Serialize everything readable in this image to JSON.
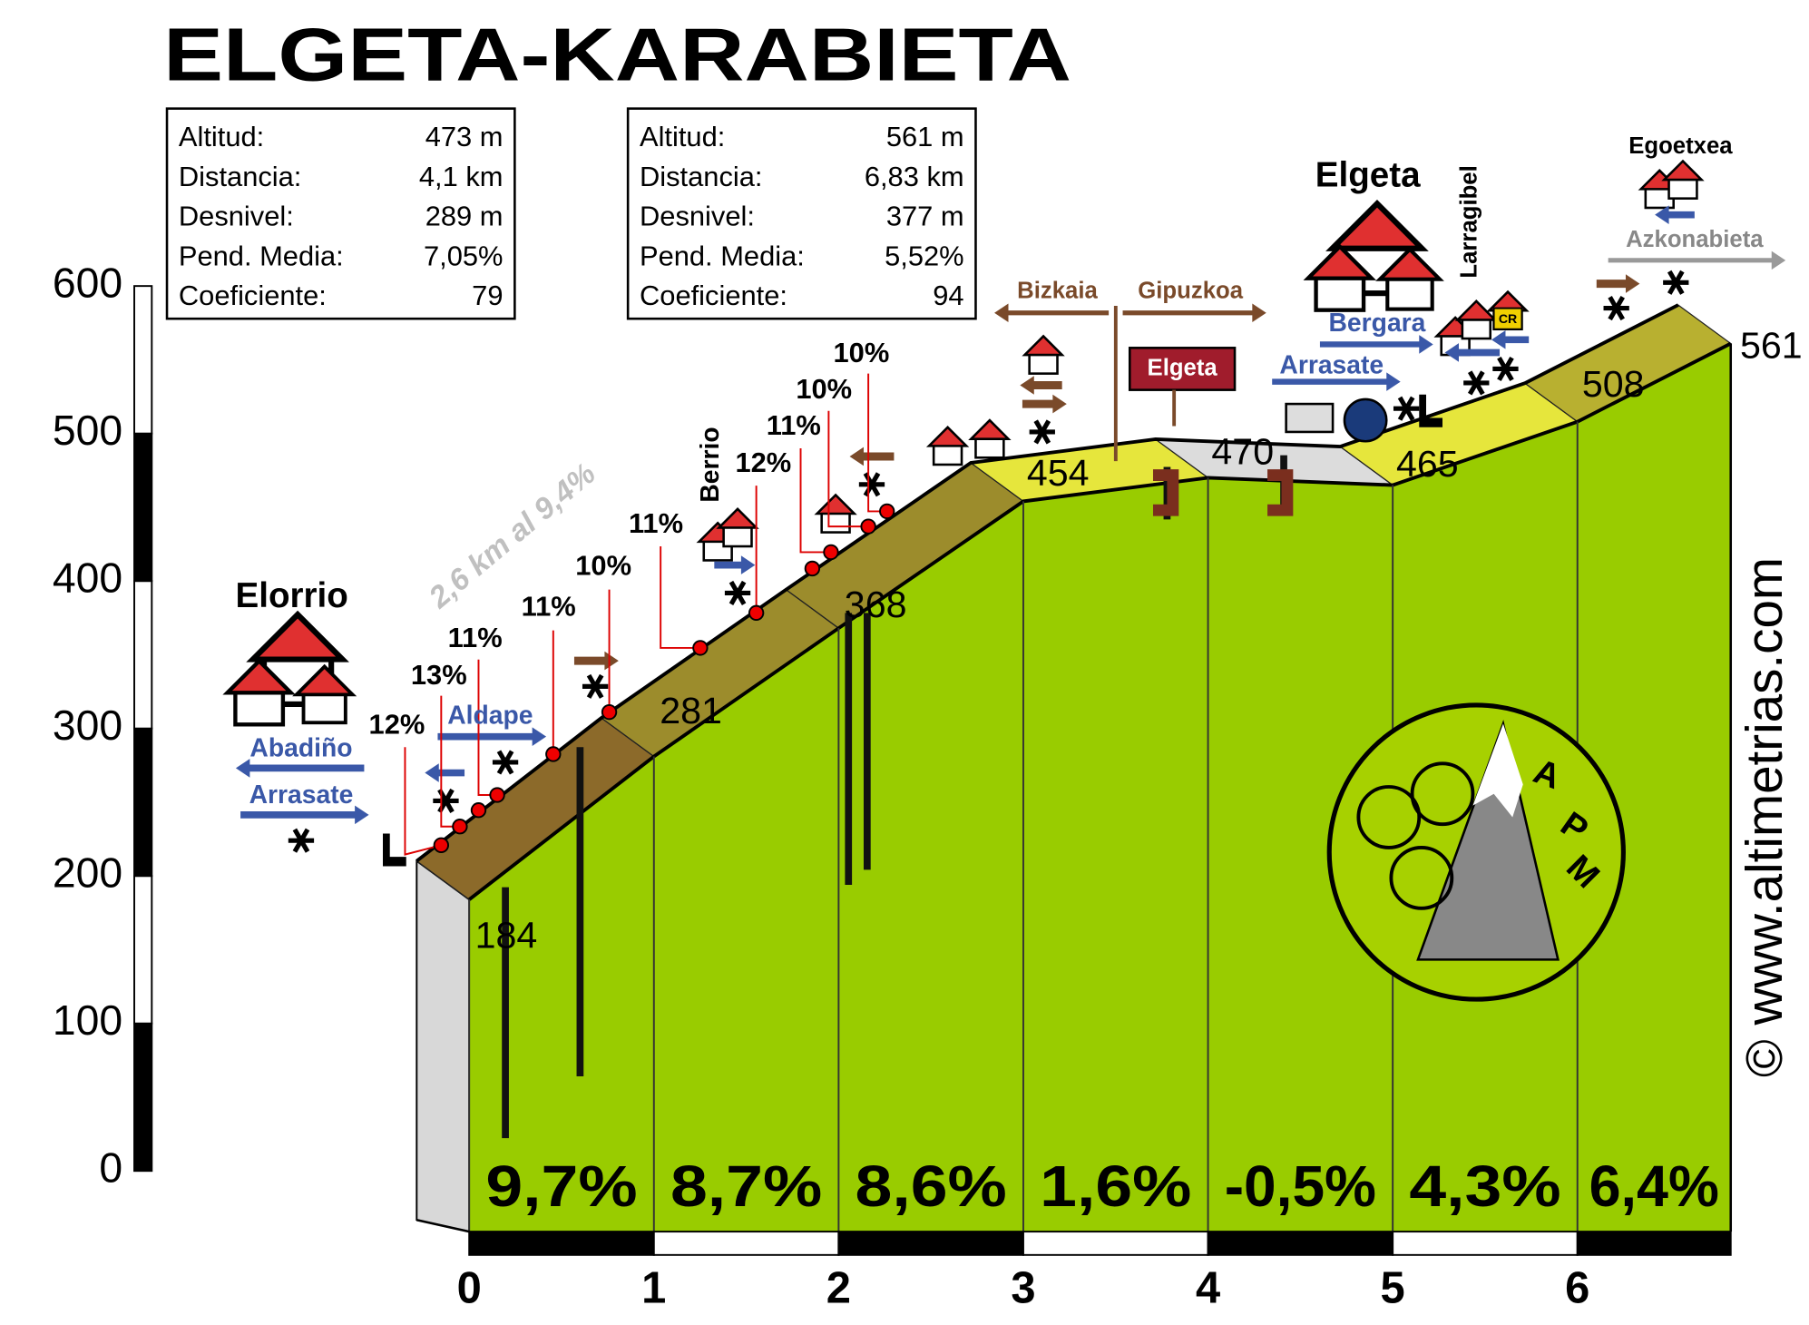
{
  "chart_data": {
    "type": "profile",
    "title": "ELGETA-KARABIETA",
    "x": [
      0,
      1,
      2,
      3,
      4,
      5,
      6,
      6.83
    ],
    "values": [
      184,
      281,
      368,
      454,
      470,
      465,
      508,
      561
    ],
    "xlim": [
      0,
      6.83
    ],
    "ylim": [
      0,
      600
    ],
    "xticks": [
      0,
      1,
      2,
      3,
      4,
      5,
      6
    ],
    "yticks": [
      0,
      100,
      200,
      300,
      400,
      500,
      600
    ],
    "color": "#99cc00",
    "segments": {
      "values": [
        9.7,
        8.7,
        8.6,
        1.6,
        -0.5,
        4.3,
        6.4
      ],
      "value_labels": [
        "9,7%",
        "8,7%",
        "8,6%",
        "1,6%",
        "-0,5%",
        "4,3%",
        "6,4%"
      ],
      "colors": [
        "#8c6a2a",
        "#9c8c2c",
        "#9c8c2c",
        "#e6e63c",
        "#dcdcdc",
        "#e6e63c",
        "#b8b030"
      ]
    },
    "annotations": [
      "Elorrio",
      "Abadiño",
      "Arrasate",
      "Aldape",
      "12%",
      "13%",
      "11%",
      "11%",
      "10%",
      "11%",
      "12%",
      "11%",
      "10%",
      "10%",
      "2,6 km al 9,4%",
      "Berrio",
      "Bizkaia",
      "Gipuzkoa",
      "Elgeta",
      "Arrasate",
      "Bergara",
      "Elgeta",
      "Larragibel",
      "CR",
      "Egoetxea",
      "Azkonabieta",
      "© www.altimetrias.com",
      "A",
      "P",
      "M"
    ]
  },
  "info_boxes": [
    {
      "rows": [
        {
          "label": "Altitud:",
          "value": "473 m"
        },
        {
          "label": "Distancia:",
          "value": "4,1 km"
        },
        {
          "label": "Desnivel:",
          "value": "289 m"
        },
        {
          "label": "Pend. Media:",
          "value": "7,05%"
        },
        {
          "label": "Coeficiente:",
          "value": "79"
        }
      ]
    },
    {
      "rows": [
        {
          "label": "Altitud:",
          "value": "561 m"
        },
        {
          "label": "Distancia:",
          "value": "6,83 km"
        },
        {
          "label": "Desnivel:",
          "value": "377 m"
        },
        {
          "label": "Pend. Media:",
          "value": "5,52%"
        },
        {
          "label": "Coeficiente:",
          "value": "94"
        }
      ]
    }
  ]
}
